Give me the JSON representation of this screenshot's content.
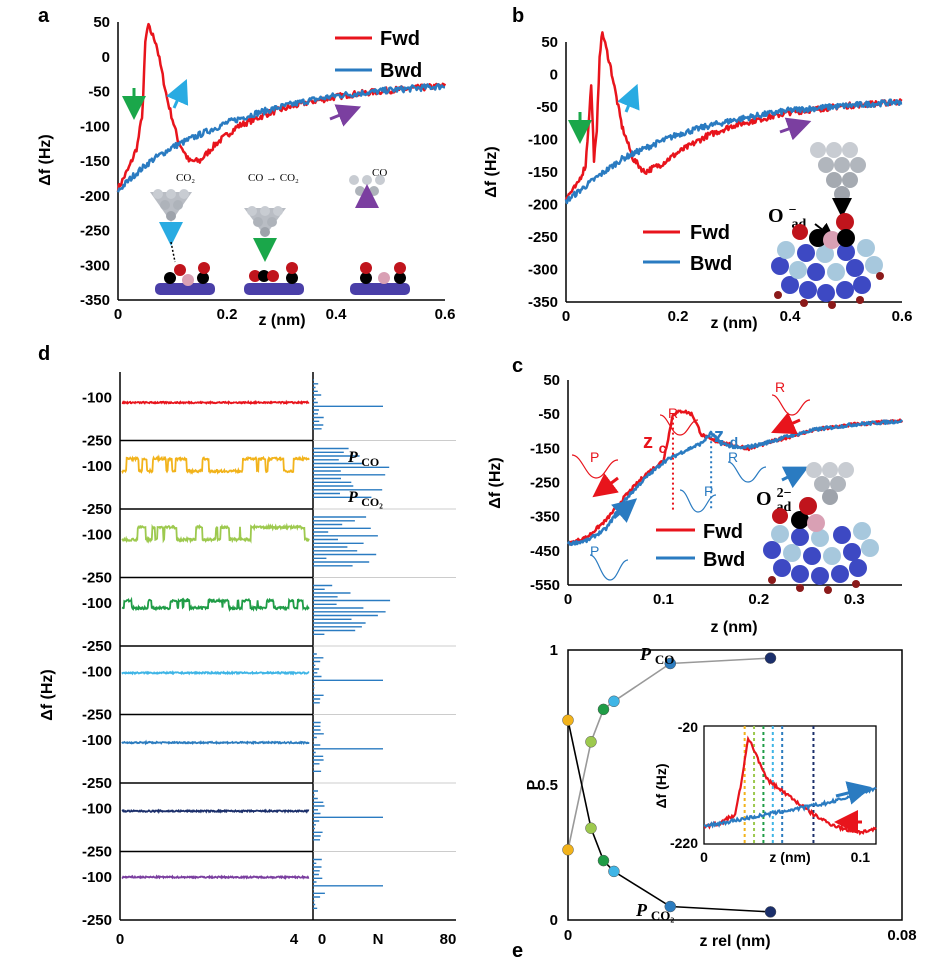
{
  "panel_labels": {
    "a": "a",
    "b": "b",
    "c": "c",
    "d": "d",
    "e": "e"
  },
  "colors": {
    "fwd": "#e8141c",
    "bwd": "#2a7bc1",
    "green_arrow": "#1aa74a",
    "cyan_arrow": "#29abe2",
    "purple_arrow": "#7b3fa0"
  },
  "chart_data": [
    {
      "id": "a",
      "type": "line",
      "xlabel": "z (nm)",
      "ylabel": "Δf (Hz)",
      "xlim": [
        0,
        0.6
      ],
      "ylim": [
        -350,
        50
      ],
      "xticks": [
        "0",
        "0.2",
        "0.4",
        "0.6"
      ],
      "yticks": [
        "50",
        "0",
        "-50",
        "-100",
        "-150",
        "-200",
        "-250",
        "-300",
        "-350"
      ],
      "legend": [
        "Fwd",
        "Bwd"
      ],
      "annotations": [
        "CO₂",
        "CO → CO₂",
        "CO"
      ],
      "series": [
        {
          "name": "Fwd",
          "x": [
            0,
            0.02,
            0.035,
            0.045,
            0.05,
            0.055,
            0.07,
            0.09,
            0.11,
            0.13,
            0.15,
            0.18,
            0.22,
            0.28,
            0.35,
            0.42,
            0.5,
            0.6
          ],
          "y": [
            -190,
            -160,
            -130,
            -80,
            20,
            45,
            20,
            -60,
            -120,
            -150,
            -150,
            -125,
            -100,
            -80,
            -65,
            -55,
            -48,
            -42
          ]
        },
        {
          "name": "Bwd",
          "x": [
            0,
            0.03,
            0.06,
            0.1,
            0.15,
            0.2,
            0.25,
            0.3,
            0.35,
            0.4,
            0.5,
            0.6
          ],
          "y": [
            -193,
            -170,
            -150,
            -130,
            -112,
            -95,
            -82,
            -72,
            -63,
            -56,
            -48,
            -42
          ]
        }
      ]
    },
    {
      "id": "b",
      "type": "line",
      "xlabel": "z (nm)",
      "ylabel": "Δf (Hz)",
      "xlim": [
        0,
        0.6
      ],
      "ylim": [
        -350,
        50
      ],
      "xticks": [
        "0",
        "0.2",
        "0.4",
        "0.6"
      ],
      "yticks": [
        "50",
        "0",
        "-50",
        "-100",
        "-150",
        "-200",
        "-250",
        "-300",
        "-350"
      ],
      "legend": [
        "Fwd",
        "Bwd"
      ],
      "annotation_label": "O",
      "annotation_sup": "−",
      "annotation_sub": "ad",
      "series": [
        {
          "name": "Fwd",
          "x": [
            0,
            0.02,
            0.035,
            0.04,
            0.045,
            0.05,
            0.055,
            0.06,
            0.065,
            0.08,
            0.1,
            0.12,
            0.14,
            0.17,
            0.2,
            0.25,
            0.3,
            0.4,
            0.5,
            0.6
          ],
          "y": [
            -190,
            -170,
            -140,
            -80,
            -15,
            -130,
            -90,
            30,
            65,
            10,
            -80,
            -130,
            -150,
            -138,
            -120,
            -95,
            -78,
            -58,
            -48,
            -42
          ]
        },
        {
          "name": "Bwd",
          "x": [
            0,
            0.03,
            0.06,
            0.1,
            0.15,
            0.2,
            0.25,
            0.3,
            0.35,
            0.4,
            0.5,
            0.6
          ],
          "y": [
            -195,
            -175,
            -155,
            -130,
            -110,
            -92,
            -80,
            -70,
            -62,
            -55,
            -48,
            -42
          ]
        }
      ]
    },
    {
      "id": "c",
      "type": "line",
      "xlabel": "z (nm)",
      "ylabel": "Δf (Hz)",
      "xlim": [
        0,
        0.35
      ],
      "ylim": [
        -550,
        50
      ],
      "xticks": [
        "0",
        "0.1",
        "0.2",
        "0.3"
      ],
      "yticks": [
        "50",
        "-50",
        "-150",
        "-250",
        "-350",
        "-450",
        "-550"
      ],
      "legend": [
        "Fwd",
        "Bwd"
      ],
      "markers": [
        {
          "label": "z",
          "sub": "c",
          "x": 0.11
        },
        {
          "label": "z",
          "sub": "d",
          "x": 0.15
        }
      ],
      "curve_labels": [
        "P",
        "R",
        "R",
        "P",
        "R",
        "P"
      ],
      "annotation_label": "O",
      "annotation_sup": "2−",
      "annotation_sub": "ad",
      "series": [
        {
          "name": "Fwd",
          "x": [
            0,
            0.02,
            0.04,
            0.06,
            0.08,
            0.1,
            0.105,
            0.11,
            0.12,
            0.13,
            0.14,
            0.15,
            0.17,
            0.19,
            0.22,
            0.26,
            0.3,
            0.35
          ],
          "y": [
            -430,
            -410,
            -360,
            -290,
            -230,
            -185,
            -120,
            -50,
            -40,
            -50,
            -110,
            -125,
            -140,
            -150,
            -125,
            -95,
            -80,
            -70
          ]
        },
        {
          "name": "Bwd",
          "x": [
            0,
            0.02,
            0.04,
            0.06,
            0.08,
            0.1,
            0.12,
            0.14,
            0.15,
            0.16,
            0.18,
            0.2,
            0.23,
            0.26,
            0.3,
            0.35
          ],
          "y": [
            -430,
            -420,
            -385,
            -300,
            -240,
            -190,
            -160,
            -135,
            -105,
            -135,
            -150,
            -140,
            -115,
            -95,
            -80,
            -70
          ]
        }
      ]
    },
    {
      "id": "d",
      "type": "line",
      "ylabel": "Δf (Hz)",
      "xticks": [
        "0",
        "4"
      ],
      "hist_xticks": [
        "0",
        "80"
      ],
      "hist_xlabel": "N",
      "strip_ticks": [
        "-100",
        "-250"
      ],
      "labels": [
        {
          "text": "P",
          "sub": "CO"
        },
        {
          "text": "P",
          "sub": "CO₂"
        }
      ],
      "traces": [
        {
          "color": "#e8141c",
          "type": "flat",
          "level": -120
        },
        {
          "color": "#f2b31b",
          "type": "switch",
          "low": -120,
          "high": -70
        },
        {
          "color": "#9dc94e",
          "type": "switch",
          "low": -120,
          "high": -70
        },
        {
          "color": "#1f9c46",
          "type": "switch",
          "low": -120,
          "high": -90
        },
        {
          "color": "#3fb5e6",
          "type": "flat",
          "level": -105
        },
        {
          "color": "#2c7cbf",
          "type": "flat",
          "level": -110
        },
        {
          "color": "#1b2f6b",
          "type": "flat",
          "level": -110
        },
        {
          "color": "#7b3fa0",
          "type": "flat",
          "level": -100
        }
      ]
    },
    {
      "id": "e",
      "type": "scatter",
      "xlabel": "z rel (nm)",
      "ylabel": "P",
      "xlim": [
        0,
        0.08
      ],
      "ylim": [
        0,
        1
      ],
      "xticks": [
        "0",
        "0.08"
      ],
      "yticks": [
        "1",
        "0.5",
        "0"
      ],
      "series": [
        {
          "name": "P_CO",
          "label": "P",
          "sub": "CO",
          "x": [
            0,
            0.0055,
            0.0085,
            0.011,
            0.0245,
            0.0485
          ],
          "y": [
            0.26,
            0.66,
            0.78,
            0.81,
            0.95,
            0.97
          ]
        },
        {
          "name": "P_CO2",
          "label": "P",
          "sub": "CO₂",
          "x": [
            0,
            0.0055,
            0.0085,
            0.011,
            0.0245,
            0.0485
          ],
          "y": [
            0.74,
            0.34,
            0.22,
            0.18,
            0.05,
            0.03
          ]
        }
      ],
      "point_colors": [
        "#f2b31b",
        "#9dc94e",
        "#1f9c46",
        "#3fb5e6",
        "#2c7cbf",
        "#1b2f6b"
      ],
      "inset": {
        "xlabel": "z (nm)",
        "ylabel": "Δf (Hz)",
        "xlim": [
          0,
          0.11
        ],
        "ylim": [
          -220,
          -20
        ],
        "xticks": [
          "0",
          "0.1"
        ],
        "yticks": [
          "-20",
          "-220"
        ],
        "series": [
          {
            "name": "Fwd",
            "x": [
              0,
              0.01,
              0.02,
              0.025,
              0.028,
              0.032,
              0.04,
              0.05,
              0.06,
              0.07,
              0.08,
              0.09,
              0.1,
              0.11
            ],
            "y": [
              -190,
              -185,
              -170,
              -100,
              -40,
              -60,
              -110,
              -130,
              -150,
              -170,
              -185,
              -195,
              -200,
              -195
            ]
          },
          {
            "name": "Bwd",
            "x": [
              0,
              0.02,
              0.04,
              0.06,
              0.08,
              0.1,
              0.11
            ],
            "y": [
              -190,
              -180,
              -170,
              -160,
              -150,
              -135,
              -125
            ]
          }
        ],
        "dashes": [
          {
            "x": 0.026,
            "color": "#f2b31b"
          },
          {
            "x": 0.032,
            "color": "#9dc94e"
          },
          {
            "x": 0.038,
            "color": "#1f9c46"
          },
          {
            "x": 0.044,
            "color": "#3fb5e6"
          },
          {
            "x": 0.05,
            "color": "#2c7cbf"
          },
          {
            "x": 0.07,
            "color": "#1b2f6b"
          }
        ]
      }
    }
  ]
}
